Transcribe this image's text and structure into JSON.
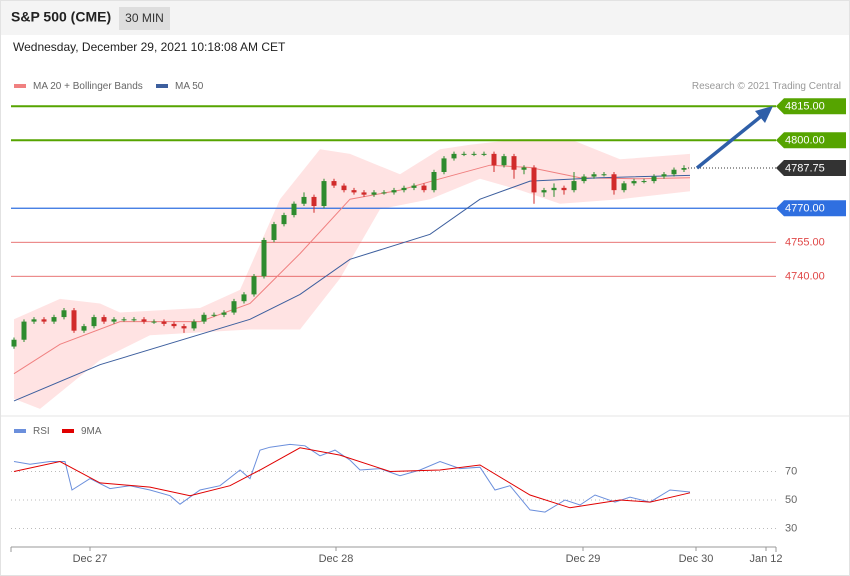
{
  "header": {
    "title": "S&P 500 (CME)",
    "timeframe": "30 MIN",
    "timestamp": "Wednesday, December 29, 2021 10:18:08 AM CET"
  },
  "chart_data": [
    {
      "type": "candlestick",
      "copyright": "Research © 2021 Trading Central",
      "xlim": [
        -0.3,
        76.2
      ],
      "ylim": [
        4681,
        4831
      ],
      "up_color": "#2e8b2e",
      "down_color": "#d12b2b",
      "candles": {
        "open": [
          4709,
          4712,
          4720,
          4721,
          4720,
          4722,
          4725,
          4716,
          4718,
          4722,
          4720,
          4721,
          4721,
          4721,
          4720,
          4720,
          4719,
          4718,
          4717,
          4720,
          4723,
          4723,
          4724,
          4729,
          4732,
          4740,
          4756,
          4763,
          4767,
          4772,
          4775,
          4771,
          4782,
          4780,
          4778,
          4777,
          4776,
          4777,
          4777,
          4778,
          4779,
          4780,
          4778,
          4786,
          4792,
          4794,
          4794,
          4794,
          4794,
          4789,
          4793,
          4787,
          4788,
          4777,
          4778,
          4779,
          4778,
          4782,
          4784,
          4785,
          4785,
          4778,
          4781,
          4782,
          4782,
          4784,
          4785,
          4787
        ],
        "high": [
          4713,
          4721,
          4722,
          4722,
          4723,
          4726,
          4726,
          4719,
          4723,
          4723,
          4722,
          4722,
          4722,
          4722,
          4721,
          4721,
          4720,
          4719,
          4721,
          4724,
          4724,
          4725,
          4730,
          4733,
          4741,
          4757,
          4764,
          4768,
          4773,
          4777,
          4776,
          4783,
          4783,
          4781,
          4779,
          4778,
          4778,
          4778,
          4779,
          4780,
          4781,
          4781,
          4787,
          4793,
          4795,
          4795,
          4795,
          4795,
          4795,
          4794,
          4794,
          4789,
          4789,
          4779,
          4781,
          4780,
          4786,
          4785,
          4786,
          4786,
          4786,
          4782,
          4783,
          4783,
          4785,
          4786,
          4788,
          4789
        ],
        "low": [
          4708,
          4711,
          4719,
          4719,
          4719,
          4721,
          4715,
          4715,
          4717,
          4719,
          4719,
          4720,
          4720,
          4719,
          4719,
          4718,
          4717,
          4715,
          4716,
          4719,
          4722,
          4722,
          4723,
          4728,
          4731,
          4739,
          4755,
          4762,
          4766,
          4771,
          4768,
          4770,
          4779,
          4777,
          4776,
          4775,
          4775,
          4776,
          4776,
          4777,
          4778,
          4777,
          4777,
          4785,
          4791,
          4793,
          4793,
          4793,
          4786,
          4788,
          4783,
          4785,
          4772,
          4775,
          4775,
          4776,
          4777,
          4781,
          4783,
          4784,
          4776,
          4777,
          4780,
          4781,
          4781,
          4783,
          4784,
          4786
        ],
        "close": [
          4712,
          4720,
          4721,
          4720,
          4722,
          4725,
          4716,
          4718,
          4722,
          4720,
          4721,
          4721,
          4721,
          4720,
          4720,
          4719,
          4718,
          4717,
          4720,
          4723,
          4723,
          4724,
          4729,
          4732,
          4740,
          4756,
          4763,
          4767,
          4772,
          4775,
          4771,
          4782,
          4780,
          4778,
          4777,
          4776,
          4777,
          4777,
          4778,
          4779,
          4780,
          4778,
          4786,
          4792,
          4794,
          4794,
          4794,
          4794,
          4789,
          4793,
          4787,
          4788,
          4777,
          4778,
          4779,
          4778,
          4782,
          4784,
          4785,
          4785,
          4778,
          4781,
          4782,
          4782,
          4784,
          4785,
          4787,
          4787.75
        ]
      },
      "series": [
        {
          "name": "MA 20 + Bollinger Bands",
          "color": "#f08080",
          "band_color": "#ffe3e3",
          "x": [
            0,
            4.6,
            10.6,
            18.6,
            23.6,
            28.6,
            33.6,
            38.6,
            42.6,
            47.6,
            51.6,
            56.6,
            62.6,
            67.6
          ],
          "values": [
            4697,
            4710,
            4720,
            4720,
            4728,
            4750,
            4774,
            4778,
            4783,
            4789,
            4788,
            4783.5,
            4783,
            4783.5
          ],
          "upper": {
            "x": [
              0,
              4.6,
              8.6,
              10.6,
              18.6,
              22.6,
              26.6,
              30.6,
              33.6,
              38.6,
              42.6,
              45.6,
              50.6,
              55.6,
              60.6,
              67.6
            ],
            "values": [
              4721,
              4730,
              4728,
              4724,
              4726,
              4734,
              4774,
              4796,
              4794,
              4785,
              4796,
              4798,
              4800.5,
              4800.5,
              4791.6,
              4794
            ]
          },
          "lower": {
            "x": [
              0,
              2.6,
              8.6,
              13.6,
              23.6,
              28.6,
              32.6,
              36.6,
              41.6,
              46.6,
              50.6,
              54.6,
              60.6,
              67.6
            ],
            "values": [
              4686,
              4681.5,
              4703,
              4714,
              4716.5,
              4716.5,
              4739,
              4769.6,
              4774,
              4783,
              4778,
              4772,
              4774,
              4777.5
            ]
          }
        },
        {
          "name": "MA 50",
          "color": "#3d5f9e",
          "x": [
            0,
            8.6,
            23.6,
            28.6,
            33.6,
            41.6,
            46.6,
            51.6,
            58.6,
            67.6
          ],
          "values": [
            4685,
            4701,
            4721,
            4732,
            4747.5,
            4758.5,
            4774,
            4782,
            4783.5,
            4784.5
          ]
        }
      ],
      "levels": [
        {
          "value": 4815,
          "label": "4815.00",
          "color": "#56a400",
          "tagged": true
        },
        {
          "value": 4800,
          "label": "4800.00",
          "color": "#56a400",
          "tagged": true
        },
        {
          "value": 4787.75,
          "label": "4787.75",
          "color": "#333333",
          "tagged": true,
          "dotted": true
        },
        {
          "value": 4770,
          "label": "4770.00",
          "color": "#2f6fe0",
          "tagged": true
        },
        {
          "value": 4755,
          "label": "4755.00",
          "color": "#e04848",
          "tagged": false
        },
        {
          "value": 4740,
          "label": "4740.00",
          "color": "#e04848",
          "tagged": false
        }
      ]
    },
    {
      "type": "line",
      "xlim": [
        -0.3,
        76.2
      ],
      "ylim": [
        17,
        104
      ],
      "yticks": [
        70,
        50,
        30
      ],
      "xticks": [
        {
          "value": 7.6,
          "label": "Dec 27"
        },
        {
          "value": 32.2,
          "label": "Dec 28"
        },
        {
          "value": 56.9,
          "label": "Dec 29"
        },
        {
          "value": 68.2,
          "label": "Dec 30"
        },
        {
          "value": 75.2,
          "label": "Jan 12"
        }
      ],
      "series": [
        {
          "name": "RSI",
          "color": "#6b8fdc",
          "x": [
            0,
            1.6,
            3.6,
            5.1,
            5.8,
            7.6,
            9.6,
            11.6,
            13.6,
            15.6,
            16.6,
            18.6,
            20.6,
            22.6,
            23.6,
            24.6,
            25.6,
            27.6,
            29.1,
            30.6,
            32.1,
            33.6,
            34.6,
            36.6,
            38.6,
            40.6,
            42.6,
            44.6,
            46.6,
            48.1,
            49.6,
            51.6,
            53.1,
            55.1,
            56.6,
            58.1,
            60.1,
            61.6,
            63.6,
            65.6,
            67.6
          ],
          "values": [
            77,
            75,
            77,
            77,
            57,
            65,
            58,
            60,
            57,
            53,
            47,
            57,
            60,
            71,
            65,
            85,
            87,
            89,
            88,
            81,
            85,
            78,
            71,
            72,
            67,
            71,
            77,
            72,
            73,
            57,
            60,
            43,
            41.5,
            50,
            46.5,
            53.5,
            48.5,
            52,
            48.5,
            57,
            55.6
          ]
        },
        {
          "name": "9MA",
          "color": "#e00000",
          "x": [
            0,
            4.6,
            8.6,
            13.6,
            17.6,
            21.6,
            24.6,
            28.6,
            32.6,
            37.6,
            42.6,
            46.6,
            51.6,
            55.6,
            60.6,
            63.6,
            67.6
          ],
          "values": [
            70,
            77,
            62,
            59,
            53,
            60,
            71,
            86.6,
            81.5,
            70,
            71,
            74.5,
            53.5,
            44.5,
            50,
            48.5,
            55
          ]
        }
      ]
    }
  ]
}
